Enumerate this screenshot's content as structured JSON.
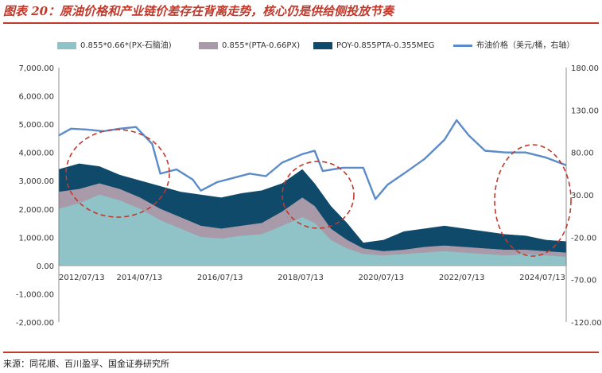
{
  "figure": {
    "title": "图表 20：原油价格和产业链价差存在背离走势，核心仍是供给侧投放节奏",
    "source": "来源：同花顺、百川盈孚、国金证券研究所"
  },
  "chart_data": {
    "type": "area",
    "title": "",
    "x_tick_labels": [
      "2012/07/13",
      "2014/07/13",
      "2016/07/13",
      "2018/07/13",
      "2020/07/13",
      "2022/07/13",
      "2024/07/13"
    ],
    "left_axis": {
      "label": "",
      "range": [
        -2000,
        7000
      ],
      "tick_labels": [
        "7,000.00",
        "6,000.00",
        "5,000.00",
        "4,000.00",
        "3,000.00",
        "2,000.00",
        "1,000.00",
        "0.00",
        "-1,000.00",
        "-2,000.00"
      ]
    },
    "right_axis": {
      "label": "",
      "range": [
        -120,
        180
      ],
      "tick_labels": [
        "180.00",
        "130.00",
        "80.00",
        "30.00",
        "-20.00",
        "-70.00",
        "-120.00"
      ]
    },
    "grid": false,
    "legend_position": "top",
    "series": [
      {
        "name": "0.855*0.66*(PX-石脑油)",
        "kind": "area",
        "axis": "left",
        "color": "#8fc3c7",
        "x": [
          2012.5,
          2013.0,
          2013.5,
          2014.0,
          2014.5,
          2015.0,
          2015.5,
          2016.0,
          2016.5,
          2017.0,
          2017.5,
          2018.0,
          2018.5,
          2018.8,
          2019.2,
          2019.6,
          2020.0,
          2020.5,
          2021.0,
          2021.5,
          2022.0,
          2022.5,
          2023.0,
          2023.5,
          2024.0,
          2024.5,
          2025.0
        ],
        "y": [
          2000,
          2200,
          2500,
          2300,
          2000,
          1600,
          1300,
          1000,
          950,
          1050,
          1100,
          1400,
          1700,
          1500,
          900,
          600,
          400,
          350,
          400,
          450,
          500,
          450,
          400,
          350,
          400,
          350,
          300
        ]
      },
      {
        "name": "0.855*(PTA-0.66PX)",
        "kind": "area",
        "axis": "left",
        "color": "#a89aa8",
        "x": [
          2012.5,
          2013.0,
          2013.5,
          2014.0,
          2014.5,
          2015.0,
          2015.5,
          2016.0,
          2016.5,
          2017.0,
          2017.5,
          2018.0,
          2018.5,
          2018.8,
          2019.2,
          2019.6,
          2020.0,
          2020.5,
          2021.0,
          2021.5,
          2022.0,
          2022.5,
          2023.0,
          2023.5,
          2024.0,
          2024.5,
          2025.0
        ],
        "y": [
          2600,
          2700,
          2900,
          2700,
          2400,
          2000,
          1700,
          1400,
          1300,
          1400,
          1500,
          1900,
          2400,
          2100,
          1300,
          900,
          600,
          500,
          550,
          650,
          700,
          650,
          600,
          550,
          550,
          500,
          450
        ]
      },
      {
        "name": "POY-0.855PTA-0.355MEG",
        "kind": "area",
        "axis": "left",
        "color": "#0f4a6b",
        "x": [
          2012.5,
          2013.0,
          2013.5,
          2014.0,
          2014.5,
          2015.0,
          2015.5,
          2016.0,
          2016.5,
          2017.0,
          2017.5,
          2018.0,
          2018.5,
          2018.8,
          2019.2,
          2019.6,
          2020.0,
          2020.5,
          2021.0,
          2021.5,
          2022.0,
          2022.5,
          2023.0,
          2023.5,
          2024.0,
          2024.5,
          2025.0
        ],
        "y": [
          3400,
          3600,
          3500,
          3200,
          3000,
          2800,
          2600,
          2500,
          2400,
          2550,
          2650,
          2900,
          3400,
          2900,
          2100,
          1500,
          800,
          900,
          1200,
          1300,
          1400,
          1300,
          1200,
          1100,
          1050,
          900,
          850
        ]
      },
      {
        "name": "布油价格（美元/桶，右轴）",
        "kind": "line",
        "axis": "right",
        "color": "#5b8cc9",
        "x": [
          2012.5,
          2012.8,
          2013.2,
          2013.6,
          2014.0,
          2014.4,
          2014.8,
          2015.0,
          2015.4,
          2015.8,
          2016.0,
          2016.4,
          2016.8,
          2017.2,
          2017.6,
          2018.0,
          2018.5,
          2018.8,
          2019.0,
          2019.5,
          2020.0,
          2020.3,
          2020.6,
          2021.0,
          2021.5,
          2022.0,
          2022.3,
          2022.6,
          2023.0,
          2023.5,
          2024.0,
          2024.5,
          2025.0
        ],
        "y": [
          100,
          108,
          107,
          105,
          108,
          110,
          90,
          55,
          60,
          48,
          35,
          45,
          50,
          55,
          52,
          68,
          78,
          82,
          58,
          62,
          62,
          25,
          42,
          55,
          72,
          95,
          118,
          100,
          82,
          80,
          80,
          74,
          65
        ]
      }
    ]
  }
}
